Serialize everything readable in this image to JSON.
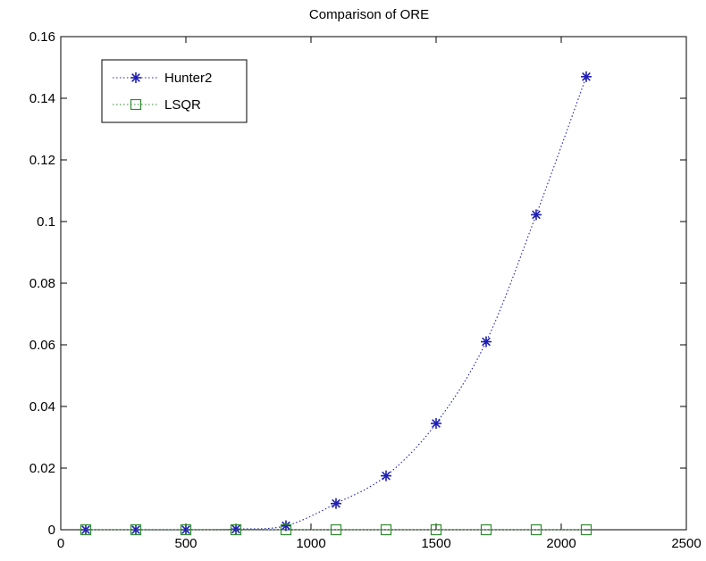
{
  "chart_data": {
    "type": "line",
    "title": "Comparison of ORE",
    "xlabel": "",
    "ylabel": "",
    "xlim": [
      0,
      2500
    ],
    "ylim": [
      0,
      0.16
    ],
    "xticks": [
      0,
      500,
      1000,
      1500,
      2000,
      2500
    ],
    "yticks": [
      0,
      0.02,
      0.04,
      0.06,
      0.08,
      0.1,
      0.12,
      0.14,
      0.16
    ],
    "grid": false,
    "legend_position": "top-left",
    "series": [
      {
        "name": "Hunter2",
        "color": "#1f1fb4",
        "marker": "star",
        "line_style": "dotted",
        "x": [
          100,
          300,
          500,
          700,
          900,
          1100,
          1300,
          1500,
          1700,
          1900,
          2100
        ],
        "y": [
          0,
          0,
          0,
          0.0002,
          0.0013,
          0.0085,
          0.0175,
          0.0345,
          0.061,
          0.1022,
          0.147
        ]
      },
      {
        "name": "LSQR",
        "color": "#2e8b2e",
        "marker": "square",
        "line_style": "dotted",
        "x": [
          100,
          300,
          500,
          700,
          900,
          1100,
          1300,
          1500,
          1700,
          1900,
          2100
        ],
        "y": [
          0,
          0,
          0,
          0,
          0,
          0,
          0,
          0,
          0,
          0,
          0
        ]
      }
    ]
  }
}
